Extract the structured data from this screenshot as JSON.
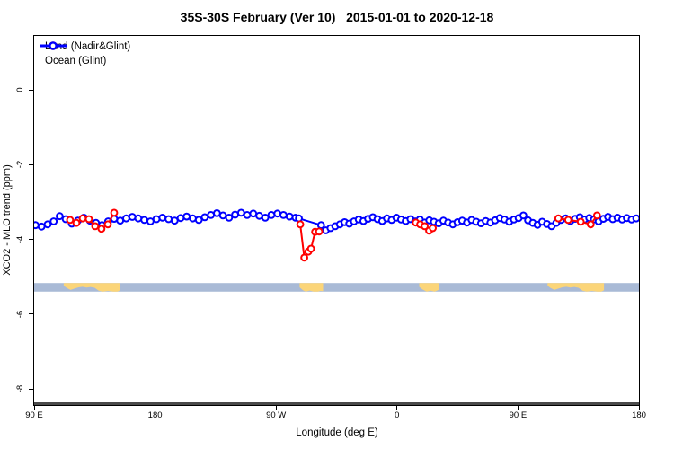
{
  "title": "35S-30S February (Ver 10)   2015-01-01 to 2020-12-18",
  "legend": {
    "items": [
      {
        "label": "Land (Nadir&Glint)",
        "color": "#ff0000"
      },
      {
        "label": "Ocean (Glint)",
        "color": "#0000ff"
      }
    ]
  },
  "axes": {
    "x": {
      "label": "Longitude (deg E)",
      "range_deg_east": [
        90,
        540
      ],
      "ticks": [
        {
          "lon": 90,
          "label": "90 E"
        },
        {
          "lon": 180,
          "label": "180"
        },
        {
          "lon": 270,
          "label": "90 W"
        },
        {
          "lon": 360,
          "label": "0"
        },
        {
          "lon": 450,
          "label": "90 E"
        },
        {
          "lon": 540,
          "label": "180"
        }
      ]
    },
    "y": {
      "label": "XCO2 - MLO trend (ppm)",
      "range": [
        -8.4,
        1.45
      ],
      "ticks": [
        {
          "value": 0,
          "label": "0"
        },
        {
          "value": -2,
          "label": "-2"
        },
        {
          "value": -4,
          "label": "-4"
        },
        {
          "value": -6,
          "label": "-6"
        },
        {
          "value": -8,
          "label": "-8"
        }
      ]
    }
  },
  "map_strip": {
    "ocean_color": "#a9bad6",
    "land_color": "#fbd579",
    "top_value": -5.17,
    "bottom_value": -5.4,
    "land_patches": [
      {
        "name": "australia-left",
        "from": 112,
        "to": 154,
        "profile": [
          [
            112,
            0.3
          ],
          [
            114,
            0.55
          ],
          [
            117,
            0.8
          ],
          [
            120,
            0.65
          ],
          [
            123,
            0.5
          ],
          [
            126,
            0.44
          ],
          [
            129,
            0.52
          ],
          [
            132,
            0.46
          ],
          [
            135,
            0.55
          ],
          [
            138,
            0.9
          ],
          [
            141,
            1.0
          ],
          [
            145,
            0.92
          ],
          [
            149,
            1.0
          ],
          [
            152,
            1.0
          ],
          [
            154,
            0.85
          ]
        ]
      },
      {
        "name": "south-america",
        "from": 287.5,
        "to": 305,
        "profile": [
          [
            287.5,
            0.5
          ],
          [
            290,
            0.85
          ],
          [
            292,
            1.0
          ],
          [
            295,
            0.88
          ],
          [
            298,
            1.0
          ],
          [
            301,
            1.0
          ],
          [
            303,
            0.92
          ],
          [
            305,
            0.95
          ]
        ]
      },
      {
        "name": "southern-africa",
        "from": 376.5,
        "to": 391,
        "profile": [
          [
            376.5,
            0.45
          ],
          [
            379,
            0.75
          ],
          [
            382,
            1.0
          ],
          [
            385,
            0.9
          ],
          [
            388,
            1.0
          ],
          [
            391,
            0.8
          ]
        ]
      },
      {
        "name": "australia-right",
        "from": 472,
        "to": 514,
        "profile": [
          [
            472,
            0.3
          ],
          [
            474,
            0.55
          ],
          [
            477,
            0.8
          ],
          [
            480,
            0.65
          ],
          [
            483,
            0.5
          ],
          [
            486,
            0.44
          ],
          [
            489,
            0.52
          ],
          [
            492,
            0.46
          ],
          [
            495,
            0.55
          ],
          [
            498,
            0.9
          ],
          [
            501,
            1.0
          ],
          [
            505,
            0.92
          ],
          [
            509,
            1.0
          ],
          [
            512,
            1.0
          ],
          [
            514,
            0.85
          ]
        ]
      }
    ]
  },
  "chart_data": {
    "type": "scatter",
    "title": "35S-30S February (Ver 10)   2015-01-01 to 2020-12-18",
    "xlabel": "Longitude (deg E)",
    "ylabel": "XCO2 - MLO trend (ppm)",
    "xlim": [
      90,
      540
    ],
    "ylim": [
      -8.4,
      1.45
    ],
    "grid": false,
    "legend_position": "top-left",
    "series": [
      {
        "name": "Ocean (Glint)",
        "color": "#0000ff",
        "marker": "open-circle",
        "points": [
          [
            91,
            -3.62
          ],
          [
            95.5,
            -3.66
          ],
          [
            100,
            -3.6
          ],
          [
            104.5,
            -3.52
          ],
          [
            109,
            -3.38
          ],
          [
            113.5,
            -3.46
          ],
          [
            118,
            -3.58
          ],
          [
            122.5,
            -3.5
          ],
          [
            127,
            -3.42
          ],
          [
            131.5,
            -3.5
          ],
          [
            136,
            -3.56
          ],
          [
            140.5,
            -3.62
          ],
          [
            145,
            -3.52
          ],
          [
            149.5,
            -3.45
          ],
          [
            154,
            -3.5
          ],
          [
            158.5,
            -3.44
          ],
          [
            163,
            -3.4
          ],
          [
            167.5,
            -3.44
          ],
          [
            172,
            -3.48
          ],
          [
            176.5,
            -3.52
          ],
          [
            181,
            -3.46
          ],
          [
            185.5,
            -3.42
          ],
          [
            190,
            -3.46
          ],
          [
            194.5,
            -3.5
          ],
          [
            199,
            -3.43
          ],
          [
            203.5,
            -3.39
          ],
          [
            208,
            -3.44
          ],
          [
            212.5,
            -3.48
          ],
          [
            217,
            -3.41
          ],
          [
            221.5,
            -3.35
          ],
          [
            226,
            -3.3
          ],
          [
            230.5,
            -3.36
          ],
          [
            235,
            -3.42
          ],
          [
            239.5,
            -3.34
          ],
          [
            244,
            -3.29
          ],
          [
            248.5,
            -3.35
          ],
          [
            253,
            -3.31
          ],
          [
            257.5,
            -3.37
          ],
          [
            262,
            -3.42
          ],
          [
            266.5,
            -3.35
          ],
          [
            271,
            -3.31
          ],
          [
            275.5,
            -3.35
          ],
          [
            280,
            -3.39
          ],
          [
            284.5,
            -3.42
          ],
          [
            287,
            -3.44
          ],
          [
            303.5,
            -3.62
          ],
          [
            307,
            -3.76
          ],
          [
            310.5,
            -3.7
          ],
          [
            314,
            -3.65
          ],
          [
            317.5,
            -3.6
          ],
          [
            321,
            -3.54
          ],
          [
            324.5,
            -3.58
          ],
          [
            328,
            -3.52
          ],
          [
            331.5,
            -3.47
          ],
          [
            335,
            -3.51
          ],
          [
            338.5,
            -3.45
          ],
          [
            342,
            -3.41
          ],
          [
            345.5,
            -3.46
          ],
          [
            349,
            -3.51
          ],
          [
            352.5,
            -3.44
          ],
          [
            356,
            -3.48
          ],
          [
            359.5,
            -3.42
          ],
          [
            363,
            -3.47
          ],
          [
            366.5,
            -3.51
          ],
          [
            370,
            -3.46
          ],
          [
            373.5,
            -3.52
          ],
          [
            377,
            -3.47
          ],
          [
            380.5,
            -3.55
          ],
          [
            384,
            -3.49
          ],
          [
            387.5,
            -3.53
          ],
          [
            391,
            -3.57
          ],
          [
            394.5,
            -3.5
          ],
          [
            398,
            -3.55
          ],
          [
            401.5,
            -3.6
          ],
          [
            405,
            -3.54
          ],
          [
            408.5,
            -3.5
          ],
          [
            412,
            -3.55
          ],
          [
            415.5,
            -3.48
          ],
          [
            419,
            -3.53
          ],
          [
            422.5,
            -3.57
          ],
          [
            426,
            -3.51
          ],
          [
            429.5,
            -3.55
          ],
          [
            433,
            -3.49
          ],
          [
            436.5,
            -3.43
          ],
          [
            440,
            -3.47
          ],
          [
            443.5,
            -3.53
          ],
          [
            447,
            -3.47
          ],
          [
            450.5,
            -3.43
          ],
          [
            454,
            -3.36
          ],
          [
            457.5,
            -3.49
          ],
          [
            461,
            -3.56
          ],
          [
            464.5,
            -3.61
          ],
          [
            468,
            -3.53
          ],
          [
            471.5,
            -3.59
          ],
          [
            475,
            -3.65
          ],
          [
            478.5,
            -3.56
          ],
          [
            482,
            -3.48
          ],
          [
            485.5,
            -3.44
          ],
          [
            489,
            -3.51
          ],
          [
            492.5,
            -3.45
          ],
          [
            496,
            -3.41
          ],
          [
            499.5,
            -3.47
          ],
          [
            503,
            -3.43
          ],
          [
            506.5,
            -3.47
          ],
          [
            510,
            -3.52
          ],
          [
            513.5,
            -3.45
          ],
          [
            517,
            -3.4
          ],
          [
            520.5,
            -3.46
          ],
          [
            524,
            -3.42
          ],
          [
            527.5,
            -3.47
          ],
          [
            531,
            -3.43
          ],
          [
            534.5,
            -3.47
          ],
          [
            538,
            -3.44
          ]
        ]
      },
      {
        "name": "Land (Nadir&Glint)",
        "color": "#ff0000",
        "marker": "open-circle",
        "clusters": [
          [
            [
              116.7,
              -3.48
            ],
            [
              121.4,
              -3.56
            ],
            [
              126.1,
              -3.44
            ],
            [
              130.7,
              -3.46
            ],
            [
              135.4,
              -3.65
            ],
            [
              140.1,
              -3.72
            ],
            [
              144.8,
              -3.6
            ],
            [
              149.5,
              -3.29
            ]
          ],
          [
            [
              288,
              -3.6
            ],
            [
              291,
              -4.49
            ],
            [
              294,
              -4.33
            ],
            [
              296,
              -4.25
            ],
            [
              299,
              -3.8
            ],
            [
              302,
              -3.79
            ]
          ],
          [
            [
              374,
              -3.55
            ],
            [
              377.2,
              -3.6
            ],
            [
              380.6,
              -3.65
            ],
            [
              383.9,
              -3.77
            ],
            [
              386.6,
              -3.7
            ]
          ],
          [
            [
              480,
              -3.44
            ],
            [
              487.4,
              -3.48
            ],
            [
              496.7,
              -3.53
            ],
            [
              504.1,
              -3.6
            ],
            [
              508.8,
              -3.36
            ]
          ]
        ]
      }
    ]
  }
}
